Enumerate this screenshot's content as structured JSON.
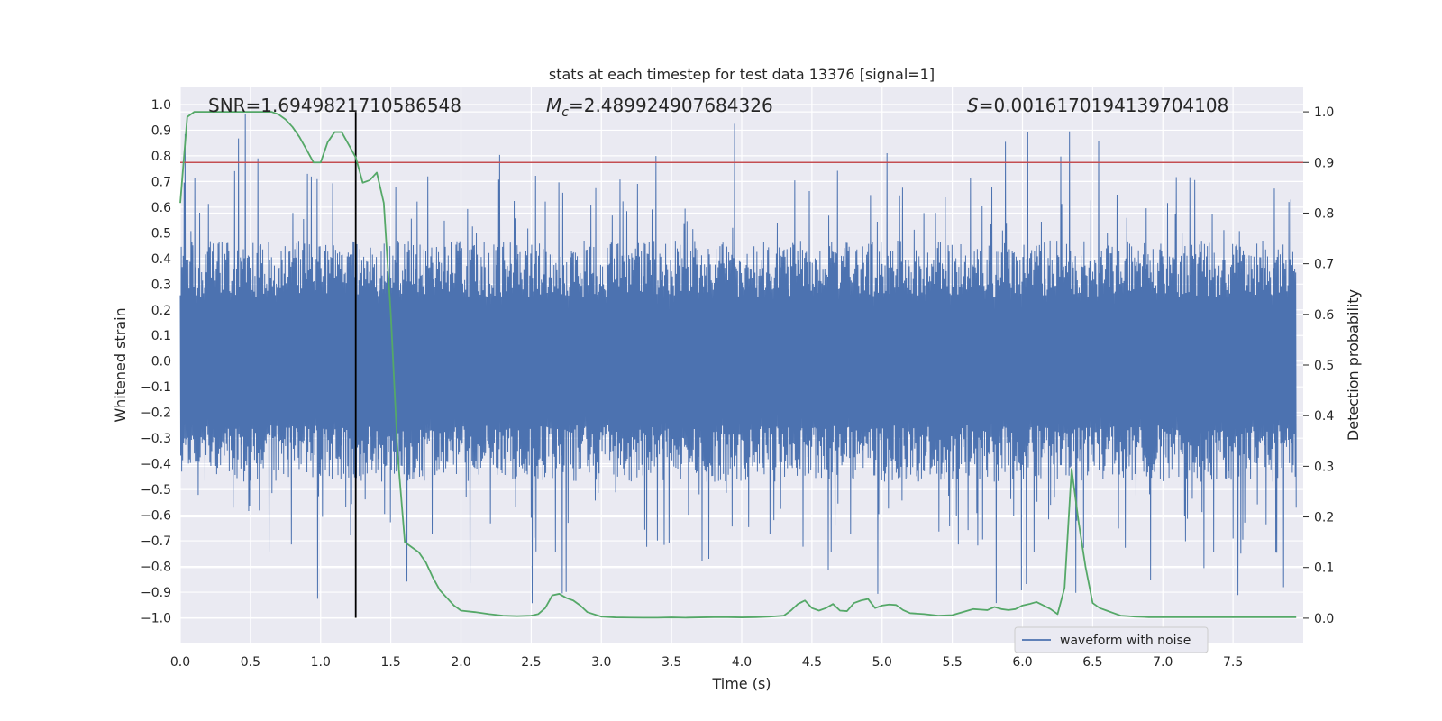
{
  "chart_data": {
    "type": "line",
    "title": "stats at each timestep for test data 13376 [signal=1]",
    "xlabel": "Time (s)",
    "ylabel_left": "Whitened strain",
    "ylabel_right": "Detection probability",
    "xlim": [
      0.0,
      8.0
    ],
    "ylim_left": [
      -1.1,
      1.07
    ],
    "ylim_right": [
      -0.05,
      1.05
    ],
    "x_ticks": [
      0.0,
      0.5,
      1.0,
      1.5,
      2.0,
      2.5,
      3.0,
      3.5,
      4.0,
      4.5,
      5.0,
      5.5,
      6.0,
      6.5,
      7.0,
      7.5
    ],
    "x_tick_labels": [
      "0.0",
      "0.5",
      "1.0",
      "1.5",
      "2.0",
      "2.5",
      "3.0",
      "3.5",
      "4.0",
      "4.5",
      "5.0",
      "5.5",
      "6.0",
      "6.5",
      "7.0",
      "7.5"
    ],
    "y_left_ticks": [
      1.0,
      0.9,
      0.8,
      0.7,
      0.6,
      0.5,
      0.4,
      0.3,
      0.2,
      0.1,
      0.0,
      -0.1,
      -0.2,
      -0.3,
      -0.4,
      -0.5,
      -0.6,
      -0.7,
      -0.8,
      -0.9,
      -1.0
    ],
    "y_left_tick_labels": [
      "1.0",
      "0.9",
      "0.8",
      "0.7",
      "0.6",
      "0.5",
      "0.4",
      "0.3",
      "0.2",
      "0.1",
      "0.0",
      "−0.1",
      "−0.2",
      "−0.3",
      "−0.4",
      "−0.5",
      "−0.6",
      "−0.7",
      "−0.8",
      "−0.9",
      "−1.0"
    ],
    "y_right_ticks": [
      1.0,
      0.9,
      0.8,
      0.7,
      0.6,
      0.5,
      0.4,
      0.3,
      0.2,
      0.1,
      0.0
    ],
    "y_right_tick_labels": [
      "1.0",
      "0.9",
      "0.8",
      "0.7",
      "0.6",
      "0.5",
      "0.4",
      "0.3",
      "0.2",
      "0.1",
      "0.0"
    ],
    "annotations": {
      "snr": "SNR=1.6949821710586548",
      "mc_symbol": "M",
      "mc_subscript": "c",
      "mc_value": "=2.489924907684326",
      "s_symbol": "S",
      "s_value": "=0.0016170194139704108"
    },
    "threshold_probability": 0.9,
    "vertical_marker_time": 1.25,
    "legend_entries": [
      "waveform with noise"
    ],
    "legend_location": "lower-right",
    "colors": {
      "waveform": "#4c72b0",
      "probability": "#55a868",
      "threshold": "#c44e52",
      "marker": "#000000",
      "plot_bg": "#eaeaf2",
      "grid": "#ffffff",
      "text": "#262626"
    },
    "series": [
      {
        "name": "waveform with noise",
        "axis": "left",
        "description_envelope": "noisy whitened strain, dense band within about ±0.4 with spikes reaching about ±0.97"
      },
      {
        "name": "detection probability",
        "axis": "right",
        "x": [
          0.0,
          0.05,
          0.1,
          0.15,
          0.2,
          0.3,
          0.4,
          0.5,
          0.6,
          0.65,
          0.7,
          0.75,
          0.8,
          0.85,
          0.9,
          0.95,
          1.0,
          1.05,
          1.1,
          1.15,
          1.2,
          1.25,
          1.3,
          1.35,
          1.4,
          1.45,
          1.5,
          1.55,
          1.6,
          1.65,
          1.7,
          1.75,
          1.8,
          1.85,
          1.9,
          1.95,
          2.0,
          2.1,
          2.2,
          2.3,
          2.4,
          2.5,
          2.55,
          2.6,
          2.65,
          2.7,
          2.75,
          2.8,
          2.85,
          2.9,
          3.0,
          3.1,
          3.2,
          3.3,
          3.4,
          3.5,
          3.6,
          3.7,
          3.8,
          3.9,
          4.0,
          4.1,
          4.2,
          4.3,
          4.35,
          4.4,
          4.45,
          4.5,
          4.55,
          4.6,
          4.65,
          4.7,
          4.75,
          4.8,
          4.85,
          4.9,
          4.95,
          5.0,
          5.05,
          5.1,
          5.15,
          5.2,
          5.3,
          5.4,
          5.5,
          5.55,
          5.6,
          5.65,
          5.7,
          5.75,
          5.8,
          5.85,
          5.9,
          5.95,
          6.0,
          6.05,
          6.1,
          6.15,
          6.2,
          6.25,
          6.3,
          6.35,
          6.4,
          6.45,
          6.5,
          6.55,
          6.6,
          6.65,
          6.7,
          6.75,
          6.8,
          6.9,
          7.0,
          7.1,
          7.2,
          7.3,
          7.4,
          7.5,
          7.6,
          7.7,
          7.8,
          7.9,
          7.95
        ],
        "values": [
          0.82,
          0.99,
          1.0,
          1.0,
          1.0,
          1.0,
          1.0,
          1.0,
          1.0,
          1.0,
          0.995,
          0.985,
          0.97,
          0.95,
          0.925,
          0.9,
          0.9,
          0.94,
          0.96,
          0.96,
          0.935,
          0.91,
          0.86,
          0.865,
          0.88,
          0.82,
          0.6,
          0.32,
          0.15,
          0.14,
          0.13,
          0.11,
          0.08,
          0.055,
          0.04,
          0.025,
          0.015,
          0.012,
          0.008,
          0.005,
          0.004,
          0.005,
          0.008,
          0.02,
          0.045,
          0.048,
          0.04,
          0.035,
          0.025,
          0.012,
          0.003,
          0.0015,
          0.0012,
          0.001,
          0.001,
          0.0015,
          0.001,
          0.0015,
          0.002,
          0.002,
          0.0015,
          0.002,
          0.003,
          0.005,
          0.015,
          0.028,
          0.035,
          0.02,
          0.015,
          0.02,
          0.028,
          0.015,
          0.014,
          0.03,
          0.035,
          0.038,
          0.02,
          0.025,
          0.027,
          0.026,
          0.016,
          0.01,
          0.008,
          0.005,
          0.006,
          0.01,
          0.014,
          0.018,
          0.017,
          0.016,
          0.022,
          0.018,
          0.016,
          0.018,
          0.025,
          0.028,
          0.032,
          0.025,
          0.018,
          0.008,
          0.06,
          0.295,
          0.19,
          0.1,
          0.03,
          0.02,
          0.015,
          0.01,
          0.005,
          0.004,
          0.003,
          0.002,
          0.002,
          0.002,
          0.002,
          0.002,
          0.002,
          0.002,
          0.002,
          0.002,
          0.002,
          0.002,
          0.002
        ]
      }
    ]
  }
}
